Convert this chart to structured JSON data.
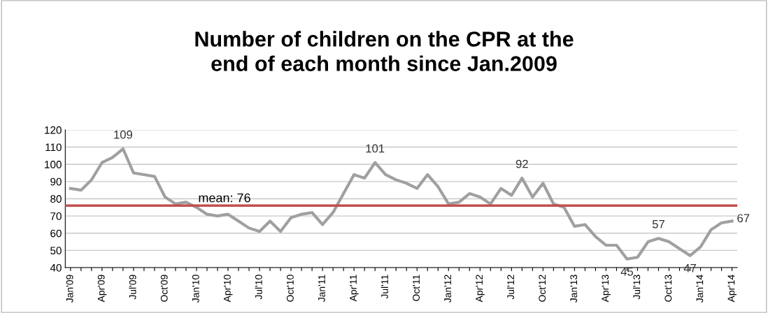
{
  "chart_data": {
    "type": "line",
    "title": "Number of children on the CPR at the\nend of each month since Jan.2009",
    "categories": [
      "Jan'09",
      null,
      null,
      "Apr'09",
      null,
      null,
      "Jul'09",
      null,
      null,
      "Oct'09",
      null,
      null,
      "Jan'10",
      null,
      null,
      "Apr'10",
      null,
      null,
      "Jul'10",
      null,
      null,
      "Oct'10",
      null,
      null,
      "Jan'11",
      null,
      null,
      "Apr'11",
      null,
      null,
      "Jul'11",
      null,
      null,
      "Oct'11",
      null,
      null,
      "Jan'12",
      null,
      null,
      "Apr'12",
      null,
      null,
      "Jul'12",
      null,
      null,
      "Oct'12",
      null,
      null,
      "Jan'13",
      null,
      null,
      "Apr'13",
      null,
      null,
      "Jul'13",
      null,
      null,
      "Oct'13",
      null,
      null,
      "Jan'14",
      null,
      null,
      "Apr'14"
    ],
    "series": [
      {
        "color": "#a0a0a0",
        "values": [
          86,
          85,
          91,
          101,
          104,
          109,
          95,
          94,
          93,
          81,
          77,
          78,
          75,
          71,
          70,
          71,
          67,
          63,
          61,
          67,
          61,
          69,
          71,
          72,
          65,
          72,
          83,
          94,
          92,
          101,
          94,
          91,
          89,
          86,
          94,
          87,
          77,
          78,
          83,
          81,
          77,
          86,
          82,
          92,
          81,
          89,
          77,
          75,
          64,
          65,
          58,
          53,
          53,
          45,
          46,
          55,
          57,
          55,
          51,
          47,
          52,
          62,
          66,
          67
        ],
        "value_labels": [
          null,
          null,
          null,
          null,
          null,
          "109",
          null,
          null,
          null,
          null,
          null,
          null,
          null,
          null,
          null,
          null,
          null,
          null,
          null,
          null,
          null,
          null,
          null,
          null,
          null,
          null,
          null,
          null,
          null,
          "101",
          null,
          null,
          null,
          null,
          null,
          null,
          null,
          null,
          null,
          null,
          null,
          null,
          null,
          "92",
          null,
          null,
          null,
          null,
          null,
          null,
          null,
          null,
          null,
          "45",
          null,
          null,
          "57",
          null,
          null,
          "47",
          null,
          null,
          null,
          "67"
        ]
      }
    ],
    "ylim": [
      40,
      120
    ],
    "yticks": [
      40,
      50,
      60,
      70,
      80,
      90,
      100,
      110,
      120
    ],
    "grid": "y",
    "legend": false,
    "marker": "none",
    "line_style": "solid",
    "ref_lines": [
      {
        "axis": "y",
        "value": 76,
        "label": "mean: 76",
        "color": "#c0504d"
      }
    ]
  }
}
